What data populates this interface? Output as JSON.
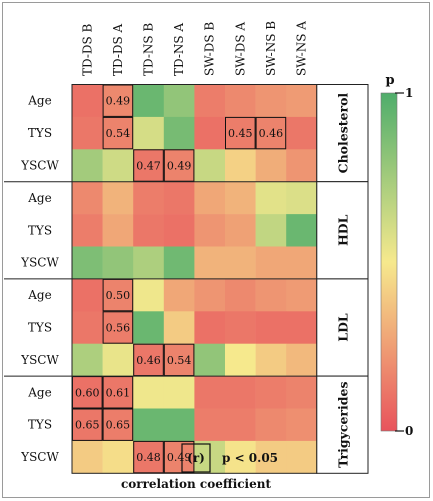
{
  "chart_data": {
    "type": "heatmap",
    "columns": [
      "TD-DS B",
      "TD-DS A",
      "TD-NS B",
      "TD-NS A",
      "SW-DS B",
      "SW-DS A",
      "SW-NS B",
      "SW-NS A"
    ],
    "row_labels": [
      "Age",
      "TYS",
      "YSCW"
    ],
    "groups": [
      {
        "name": "Cholesterol",
        "rows": [
          {
            "label": "Age",
            "rho": [
              0.1,
              0.18,
              0.92,
              0.8,
              0.14,
              0.18,
              0.22,
              0.24
            ],
            "labels": [
              "",
              "0.49",
              "",
              "",
              "",
              "",
              "",
              ""
            ]
          },
          {
            "label": "TYS",
            "rho": [
              0.12,
              0.16,
              0.6,
              0.88,
              0.1,
              0.14,
              0.16,
              0.12
            ],
            "labels": [
              "",
              "0.54",
              "",
              "",
              "",
              "0.45",
              "0.46",
              ""
            ]
          },
          {
            "label": "YSCW",
            "rho": [
              0.75,
              0.62,
              0.12,
              0.16,
              0.64,
              0.42,
              0.3,
              0.22
            ],
            "labels": [
              "",
              "",
              "0.47",
              "0.49",
              "",
              "",
              "",
              ""
            ]
          }
        ]
      },
      {
        "name": "HDL",
        "rows": [
          {
            "label": "Age",
            "rho": [
              0.18,
              0.32,
              0.14,
              0.12,
              0.28,
              0.32,
              0.56,
              0.58
            ],
            "labels": [
              "",
              "",
              "",
              "",
              "",
              "",
              "",
              ""
            ]
          },
          {
            "label": "TYS",
            "rho": [
              0.14,
              0.28,
              0.12,
              0.1,
              0.22,
              0.26,
              0.66,
              0.92
            ],
            "labels": [
              "",
              "",
              "",
              "",
              "",
              "",
              "",
              ""
            ]
          },
          {
            "label": "YSCW",
            "rho": [
              0.86,
              0.8,
              0.72,
              0.9,
              0.32,
              0.32,
              0.28,
              0.28
            ],
            "labels": [
              "",
              "",
              "",
              "",
              "",
              "",
              "",
              ""
            ]
          }
        ]
      },
      {
        "name": "LDL",
        "rows": [
          {
            "label": "Age",
            "rho": [
              0.1,
              0.16,
              0.52,
              0.28,
              0.22,
              0.18,
              0.22,
              0.24
            ],
            "labels": [
              "",
              "0.50",
              "",
              "",
              "",
              "",
              "",
              ""
            ]
          },
          {
            "label": "TYS",
            "rho": [
              0.12,
              0.14,
              0.92,
              0.4,
              0.1,
              0.12,
              0.1,
              0.1
            ],
            "labels": [
              "",
              "0.56",
              "",
              "",
              "",
              "",
              "",
              ""
            ]
          },
          {
            "label": "YSCW",
            "rho": [
              0.72,
              0.54,
              0.12,
              0.16,
              0.8,
              0.5,
              0.4,
              0.34
            ],
            "labels": [
              "",
              "",
              "0.46",
              "0.54",
              "",
              "",
              "",
              ""
            ]
          }
        ]
      },
      {
        "name": "Trigycerides",
        "rows": [
          {
            "label": "Age",
            "rho": [
              0.1,
              0.12,
              0.52,
              0.52,
              0.12,
              0.12,
              0.14,
              0.16
            ],
            "labels": [
              "0.60",
              "0.61",
              "",
              "",
              "",
              "",
              "",
              ""
            ]
          },
          {
            "label": "TYS",
            "rho": [
              0.12,
              0.14,
              0.92,
              0.92,
              0.14,
              0.14,
              0.18,
              0.2
            ],
            "labels": [
              "0.65",
              "0.65",
              "",
              "",
              "",
              "",
              "",
              ""
            ]
          },
          {
            "label": "YSCW",
            "rho": [
              0.4,
              0.46,
              0.12,
              0.16,
              0.64,
              0.48,
              0.4,
              0.4
            ],
            "labels": [
              "",
              "",
              "0.48",
              "0.49",
              "",
              "",
              "",
              ""
            ]
          }
        ]
      }
    ],
    "colorbar": {
      "title": "p",
      "min_label": "0",
      "max_label": "1",
      "low_color": "#e8535c",
      "mid_color": "#f6e98d",
      "high_color": "#4fad6b"
    },
    "legend_note": {
      "symbol": "(r)",
      "condition": "p < 0.05",
      "caption": "correlation coefficient"
    }
  }
}
